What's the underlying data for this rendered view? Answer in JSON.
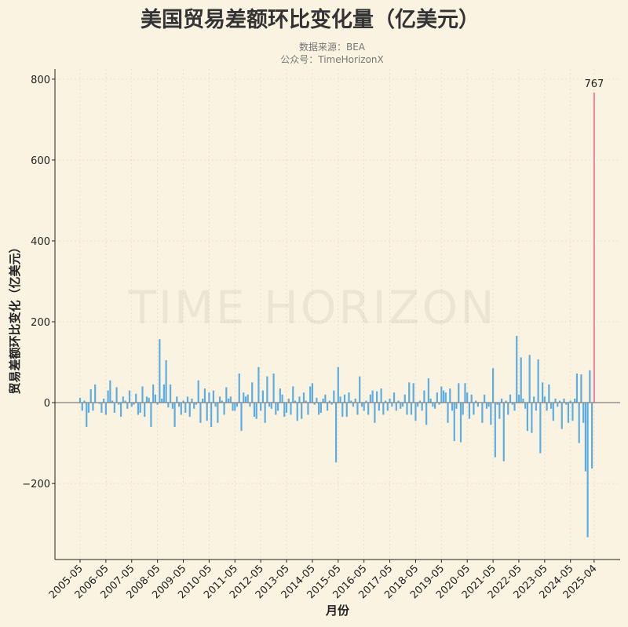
{
  "chart_data": {
    "type": "bar",
    "title": "美国贸易差额环比变化量（亿美元）",
    "subtitle_lines": [
      "数据来源：BEA",
      "公众号：TimeHorizonX"
    ],
    "watermark": "TIME HORIZON",
    "xlabel": "月份",
    "ylabel": "贸易差额环比变化（亿美元）",
    "x_start": "2005-05",
    "x_end": "2025-04",
    "x_tick_labels": [
      "2005-05",
      "2006-05",
      "2007-05",
      "2008-05",
      "2009-05",
      "2010-05",
      "2011-05",
      "2012-05",
      "2013-05",
      "2014-05",
      "2015-05",
      "2016-05",
      "2017-05",
      "2018-05",
      "2019-05",
      "2020-05",
      "2021-05",
      "2022-05",
      "2023-05",
      "2024-05",
      "2025-04"
    ],
    "y_ticks": [
      -200,
      0,
      200,
      400,
      600,
      800
    ],
    "y_tick_labels": [
      "−200",
      "0",
      "200",
      "400",
      "600",
      "800"
    ],
    "ylim": [
      -388,
      825
    ],
    "grid": true,
    "colors": {
      "bar": "#5dade2",
      "highlight": "#e88ca0",
      "background": "#faf3e1",
      "zero_line": "#888888"
    },
    "highlight_label": "767",
    "values": [
      12,
      -20,
      5,
      -60,
      -25,
      33,
      -20,
      45,
      0,
      -3,
      -25,
      10,
      -30,
      30,
      55,
      5,
      -25,
      38,
      -5,
      -35,
      15,
      5,
      -15,
      30,
      -10,
      -5,
      22,
      -30,
      -25,
      40,
      -35,
      15,
      12,
      -60,
      45,
      20,
      -5,
      157,
      10,
      45,
      105,
      -12,
      45,
      -15,
      -60,
      15,
      -10,
      -30,
      5,
      -25,
      15,
      -35,
      10,
      -15,
      -5,
      55,
      -50,
      10,
      35,
      -45,
      25,
      -60,
      30,
      -10,
      -50,
      15,
      5,
      -30,
      38,
      10,
      15,
      -20,
      -20,
      -10,
      72,
      -70,
      25,
      15,
      20,
      -10,
      50,
      -35,
      -40,
      88,
      -20,
      30,
      -50,
      65,
      -10,
      -15,
      72,
      -30,
      -20,
      35,
      20,
      -35,
      -25,
      10,
      -30,
      40,
      5,
      -45,
      15,
      -40,
      25,
      5,
      -30,
      40,
      48,
      -5,
      12,
      -30,
      -25,
      10,
      20,
      -20,
      5,
      -5,
      30,
      -148,
      88,
      15,
      -35,
      20,
      -35,
      25,
      5,
      -10,
      10,
      -30,
      65,
      -10,
      -20,
      5,
      -30,
      20,
      30,
      -50,
      28,
      -20,
      35,
      -30,
      5,
      -20,
      10,
      -10,
      25,
      -20,
      5,
      -15,
      -10,
      20,
      -30,
      50,
      -30,
      48,
      -45,
      -10,
      5,
      -20,
      30,
      -55,
      60,
      10,
      -10,
      -15,
      25,
      -5,
      40,
      30,
      25,
      -50,
      35,
      -20,
      -95,
      -15,
      48,
      -98,
      -30,
      48,
      25,
      -40,
      20,
      -30,
      5,
      -10,
      0,
      -50,
      20,
      -15,
      -10,
      -55,
      85,
      -135,
      -5,
      -40,
      10,
      -145,
      5,
      -30,
      20,
      -5,
      -20,
      165,
      20,
      112,
      10,
      -15,
      -70,
      118,
      -75,
      15,
      -20,
      107,
      -125,
      50,
      15,
      -20,
      45,
      -15,
      -45,
      10,
      -10,
      5,
      -65,
      10,
      -5,
      -50,
      5,
      -45,
      10,
      72,
      -100,
      70,
      -50,
      -170,
      -333,
      80,
      -163,
      767
    ]
  }
}
